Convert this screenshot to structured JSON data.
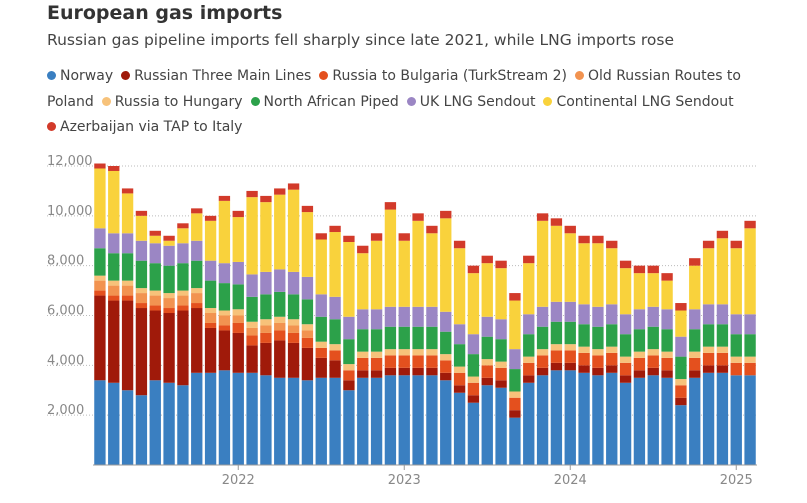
{
  "chart_data": {
    "type": "stacked_bar",
    "title": "European gas imports",
    "subtitle": "Russian gas pipeline imports fell sharply since late 2021, while LNG imports rose",
    "categories": [
      null,
      null,
      null,
      null,
      null,
      null,
      null,
      null,
      null,
      null,
      "2022",
      null,
      null,
      null,
      null,
      null,
      null,
      null,
      null,
      null,
      null,
      null,
      "2023",
      null,
      null,
      null,
      null,
      null,
      null,
      null,
      null,
      null,
      null,
      null,
      "2024",
      null,
      null,
      null,
      null,
      null,
      null,
      null,
      null,
      null,
      null,
      null,
      "2025",
      null
    ],
    "series": [
      {
        "name": "Norway",
        "color": "#3a7fc1",
        "values": [
          3400,
          3300,
          3000,
          2800,
          3400,
          3300,
          3200,
          3700,
          3700,
          3800,
          3700,
          3700,
          3600,
          3500,
          3500,
          3400,
          3500,
          3500,
          3000,
          3500,
          3500,
          3600,
          3600,
          3600,
          3600,
          3400,
          2900,
          2500,
          3200,
          3100,
          1900,
          3300,
          3600,
          3800,
          3800,
          3700,
          3600,
          3700,
          3300,
          3500,
          3600,
          3500,
          2400,
          3500,
          3700,
          3700,
          3600,
          3600
        ]
      },
      {
        "name": "Russian Three Main Lines",
        "color": "#a01a0a",
        "values": [
          3400,
          3300,
          3600,
          3500,
          2800,
          2800,
          3000,
          2600,
          1800,
          1600,
          1600,
          1100,
          1300,
          1500,
          1400,
          1300,
          800,
          700,
          400,
          300,
          300,
          300,
          300,
          300,
          300,
          300,
          300,
          300,
          300,
          300,
          300,
          300,
          300,
          300,
          300,
          300,
          300,
          300,
          300,
          300,
          300,
          300,
          300,
          300,
          300,
          300,
          0,
          0
        ]
      },
      {
        "name": "Russia to Bulgaria (TurkStream 2)",
        "color": "#e4501e",
        "values": [
          200,
          200,
          200,
          200,
          200,
          200,
          200,
          200,
          200,
          200,
          400,
          400,
          400,
          400,
          400,
          400,
          400,
          400,
          400,
          500,
          500,
          500,
          500,
          500,
          500,
          500,
          500,
          500,
          500,
          500,
          500,
          500,
          500,
          500,
          500,
          500,
          500,
          500,
          500,
          500,
          500,
          500,
          500,
          500,
          500,
          500,
          500,
          500
        ]
      },
      {
        "name": "Old Russian Routes to Poland",
        "color": "#f29350",
        "values": [
          400,
          400,
          400,
          400,
          400,
          400,
          400,
          400,
          400,
          400,
          300,
          300,
          300,
          300,
          300,
          300,
          0,
          0,
          0,
          0,
          0,
          0,
          0,
          0,
          0,
          0,
          0,
          0,
          0,
          0,
          0,
          0,
          0,
          0,
          0,
          0,
          0,
          0,
          0,
          0,
          0,
          0,
          0,
          0,
          0,
          0,
          0,
          0
        ]
      },
      {
        "name": "Russia to Hungary",
        "color": "#f7c27a",
        "values": [
          200,
          200,
          200,
          200,
          200,
          200,
          200,
          200,
          200,
          200,
          250,
          250,
          250,
          250,
          250,
          250,
          250,
          250,
          250,
          250,
          250,
          250,
          250,
          250,
          250,
          250,
          250,
          250,
          250,
          250,
          250,
          250,
          250,
          250,
          250,
          250,
          250,
          250,
          250,
          250,
          250,
          250,
          250,
          250,
          250,
          250,
          250,
          250
        ]
      },
      {
        "name": "North African Piped",
        "color": "#2ca14a",
        "values": [
          1100,
          1100,
          1100,
          1100,
          1100,
          1100,
          1100,
          1100,
          1100,
          1100,
          1000,
          1000,
          1000,
          1000,
          1000,
          1000,
          1000,
          1000,
          1000,
          900,
          900,
          900,
          900,
          900,
          900,
          900,
          900,
          900,
          900,
          900,
          900,
          900,
          900,
          900,
          900,
          900,
          900,
          900,
          900,
          900,
          900,
          900,
          900,
          900,
          900,
          900,
          900,
          900
        ]
      },
      {
        "name": "UK LNG Sendout",
        "color": "#9b86c4",
        "values": [
          800,
          800,
          800,
          800,
          800,
          800,
          800,
          800,
          800,
          800,
          900,
          900,
          900,
          900,
          900,
          900,
          900,
          900,
          900,
          800,
          800,
          800,
          800,
          800,
          800,
          800,
          800,
          800,
          800,
          800,
          800,
          800,
          800,
          800,
          800,
          800,
          800,
          800,
          800,
          800,
          800,
          800,
          800,
          800,
          800,
          800,
          800,
          800
        ]
      },
      {
        "name": "Continental LNG Sendout",
        "color": "#f9d23c",
        "values": [
          2400,
          2500,
          1600,
          1000,
          300,
          200,
          600,
          1100,
          1600,
          2500,
          1800,
          3100,
          2800,
          3000,
          3300,
          2600,
          2200,
          2600,
          3000,
          2250,
          2750,
          3900,
          2650,
          3450,
          2950,
          3750,
          3050,
          2450,
          2150,
          2050,
          1950,
          2050,
          3450,
          3050,
          2750,
          2450,
          2550,
          2250,
          1850,
          1450,
          1350,
          1150,
          1050,
          1750,
          2250,
          2650,
          2650,
          3450
        ]
      },
      {
        "name": "Azerbaijan via TAP to Italy",
        "color": "#d23a2a",
        "values": [
          200,
          200,
          200,
          200,
          200,
          200,
          200,
          200,
          200,
          200,
          250,
          250,
          250,
          250,
          250,
          250,
          250,
          250,
          250,
          300,
          300,
          300,
          300,
          300,
          300,
          300,
          300,
          300,
          300,
          300,
          300,
          300,
          300,
          300,
          300,
          300,
          300,
          300,
          300,
          300,
          300,
          300,
          300,
          300,
          300,
          300,
          300,
          300
        ]
      }
    ],
    "ylim": [
      0,
      12000
    ],
    "yticks": [
      {
        "value": 2000,
        "label": "2,000"
      },
      {
        "value": 4000,
        "label": "4,000"
      },
      {
        "value": 6000,
        "label": "6,000"
      },
      {
        "value": 8000,
        "label": "8,000"
      },
      {
        "value": 10000,
        "label": "10,000"
      },
      {
        "value": 12000,
        "label": "12,000"
      }
    ],
    "grid": true
  }
}
